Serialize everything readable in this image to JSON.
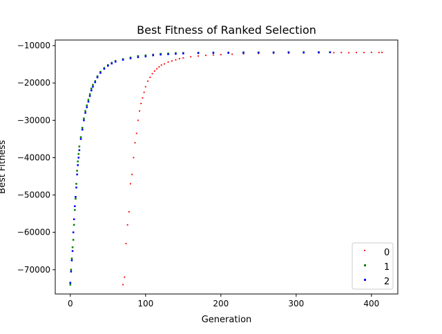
{
  "chart_data": {
    "type": "scatter",
    "title": "Best Fitness of Ranked Selection",
    "xlabel": "Generation",
    "ylabel": "Best Fitness",
    "xlim": [
      -20,
      435
    ],
    "ylim": [
      -76500,
      -8500
    ],
    "xticks": [
      0,
      100,
      200,
      300,
      400
    ],
    "yticks": [
      -70000,
      -60000,
      -50000,
      -40000,
      -30000,
      -20000,
      -10000
    ],
    "xtick_labels": [
      "0",
      "100",
      "200",
      "300",
      "400"
    ],
    "ytick_labels": [
      "−70000",
      "−60000",
      "−50000",
      "−40000",
      "−30000",
      "−20000",
      "−10000"
    ],
    "grid": false,
    "legend_position": "lower-right",
    "series": [
      {
        "name": "0",
        "color": "#ff0000",
        "marker_size": 1.2,
        "x": [
          70,
          72,
          74,
          76,
          78,
          80,
          82,
          84,
          86,
          88,
          90,
          92,
          94,
          96,
          98,
          100,
          103,
          106,
          109,
          112,
          115,
          118,
          121,
          125,
          130,
          135,
          140,
          145,
          150,
          160,
          170,
          180,
          190,
          200,
          215,
          230,
          250,
          270,
          290,
          310,
          330,
          350,
          360,
          370,
          380,
          390,
          400,
          410,
          414
        ],
        "y": [
          -74000,
          -72000,
          -63000,
          -58000,
          -54500,
          -47000,
          -44500,
          -40000,
          -36000,
          -33500,
          -30000,
          -27500,
          -25500,
          -24000,
          -22500,
          -21000,
          -19500,
          -18500,
          -17500,
          -16800,
          -16200,
          -15700,
          -15200,
          -14900,
          -14400,
          -14100,
          -13800,
          -13500,
          -13300,
          -13000,
          -12800,
          -12600,
          -12500,
          -12400,
          -12300,
          -12200,
          -12100,
          -12050,
          -12000,
          -11950,
          -11950,
          -11900,
          -11850,
          -11900,
          -11850,
          -11850,
          -11800,
          -11850,
          -11800
        ]
      },
      {
        "name": "1",
        "color": "#008000",
        "marker_size": 1.6,
        "x": [
          0,
          1,
          2,
          3,
          4,
          5,
          6,
          7,
          8,
          9,
          10,
          11,
          12,
          14,
          16,
          18,
          20,
          22,
          24,
          26,
          28,
          30,
          33,
          36,
          40,
          45,
          50,
          55,
          60,
          70,
          80,
          90,
          100,
          110,
          120,
          130,
          140,
          150,
          170,
          190,
          210,
          230,
          250,
          270,
          290,
          310,
          330,
          345
        ],
        "y": [
          -74000,
          -70000,
          -67000,
          -64000,
          -62000,
          -58000,
          -54000,
          -51000,
          -47000,
          -43500,
          -41000,
          -39000,
          -37000,
          -34500,
          -32000,
          -29500,
          -27500,
          -26000,
          -24500,
          -23000,
          -21500,
          -20500,
          -19500,
          -18200,
          -17000,
          -16000,
          -15200,
          -14600,
          -14100,
          -13600,
          -13200,
          -12800,
          -12600,
          -12400,
          -12200,
          -12100,
          -12000,
          -11950,
          -11900,
          -11850,
          -11850,
          -11800,
          -11800,
          -11800,
          -11750,
          -11750,
          -11750,
          -11750
        ]
      },
      {
        "name": "2",
        "color": "#0000ff",
        "marker_size": 1.6,
        "x": [
          0,
          1,
          2,
          3,
          4,
          5,
          6,
          7,
          8,
          9,
          10,
          11,
          12,
          14,
          16,
          18,
          20,
          22,
          24,
          26,
          28,
          30,
          33,
          36,
          40,
          45,
          50,
          55,
          60,
          70,
          80,
          90,
          100,
          110,
          120,
          130,
          140,
          150,
          170,
          190,
          210,
          230,
          250,
          270,
          290,
          310,
          330,
          345
        ],
        "y": [
          -73500,
          -70500,
          -67500,
          -65000,
          -60000,
          -56500,
          -53000,
          -50500,
          -48000,
          -44500,
          -42000,
          -40000,
          -38000,
          -35000,
          -32500,
          -30000,
          -28000,
          -26500,
          -25000,
          -23500,
          -22000,
          -21000,
          -19800,
          -18500,
          -17300,
          -16200,
          -15400,
          -14800,
          -14300,
          -13800,
          -13400,
          -13100,
          -12900,
          -12600,
          -12400,
          -12300,
          -12200,
          -12100,
          -12000,
          -11950,
          -11950,
          -11900,
          -11900,
          -11850,
          -11850,
          -11850,
          -11800,
          -11800
        ]
      }
    ]
  }
}
